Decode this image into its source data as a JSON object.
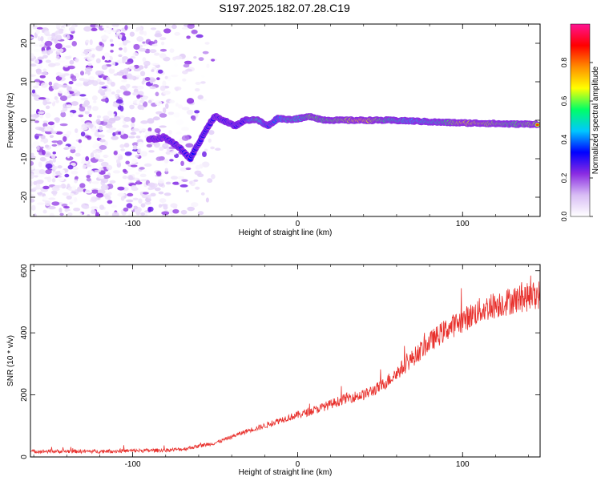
{
  "title": "S197.2025.182.07.28.C19",
  "chart_data": [
    {
      "type": "heatmap",
      "xlabel": "Height of straight line (km)",
      "ylabel": "Frequency (Hz)",
      "xlim": [
        -162,
        147
      ],
      "ylim": [
        -25,
        25
      ],
      "xticks": [
        -100,
        0,
        100
      ],
      "yticks": [
        -20,
        -10,
        0,
        10,
        20
      ],
      "colorbar": {
        "label": "Normalized spectral amplitude",
        "range": [
          0,
          1
        ],
        "ticks": [
          0.0,
          0.2,
          0.4,
          0.6,
          0.8
        ],
        "colors": [
          "#ffffff",
          "#d8bdf5",
          "#8a2be2",
          "#0000ff",
          "#00c8ff",
          "#00ff66",
          "#ffff00",
          "#ff8c00",
          "#ff0000",
          "#ff1493"
        ]
      },
      "ridge": [
        {
          "x": -90,
          "y": -5,
          "a": 0.25
        },
        {
          "x": -80,
          "y": -4.5,
          "a": 0.3
        },
        {
          "x": -72,
          "y": -7,
          "a": 0.3
        },
        {
          "x": -65,
          "y": -10,
          "a": 0.35
        },
        {
          "x": -60,
          "y": -6,
          "a": 0.3
        },
        {
          "x": -55,
          "y": -2,
          "a": 0.3
        },
        {
          "x": -50,
          "y": 1,
          "a": 0.3
        },
        {
          "x": -45,
          "y": 0,
          "a": 0.3
        },
        {
          "x": -38,
          "y": -1.5,
          "a": 0.3
        },
        {
          "x": -32,
          "y": 0,
          "a": 0.35
        },
        {
          "x": -25,
          "y": 0.2,
          "a": 0.7
        },
        {
          "x": -18,
          "y": -1.5,
          "a": 0.4
        },
        {
          "x": -12,
          "y": 0.5,
          "a": 0.45
        },
        {
          "x": -5,
          "y": 0.2,
          "a": 0.65
        },
        {
          "x": 2,
          "y": 0.5,
          "a": 0.6
        },
        {
          "x": 8,
          "y": 1,
          "a": 0.8
        },
        {
          "x": 15,
          "y": 0.1,
          "a": 0.75
        },
        {
          "x": 25,
          "y": 0,
          "a": 0.8
        },
        {
          "x": 40,
          "y": 0,
          "a": 0.95
        },
        {
          "x": 55,
          "y": 0,
          "a": 0.7
        },
        {
          "x": 70,
          "y": -0.2,
          "a": 0.55
        },
        {
          "x": 85,
          "y": -0.5,
          "a": 0.65
        },
        {
          "x": 100,
          "y": -0.7,
          "a": 0.9
        },
        {
          "x": 115,
          "y": -0.8,
          "a": 0.85
        },
        {
          "x": 130,
          "y": -1,
          "a": 0.75
        },
        {
          "x": 146,
          "y": -1,
          "a": 0.85
        }
      ]
    },
    {
      "type": "line",
      "xlabel": "Height of straight line (km)",
      "ylabel": "SNR (10 * v/v)",
      "xlim": [
        -162,
        147
      ],
      "ylim": [
        0,
        620
      ],
      "xticks": [
        -100,
        0,
        100
      ],
      "yticks": [
        0,
        200,
        400,
        600
      ],
      "line_color": "#e8302c",
      "series": [
        {
          "x": [
            -162,
            -140,
            -120,
            -100,
            -80,
            -70,
            -60,
            -50,
            -40,
            -30,
            -20,
            -10,
            0,
            10,
            20,
            30,
            40,
            50,
            60,
            70,
            80,
            90,
            100,
            110,
            120,
            130,
            140,
            147
          ],
          "values": [
            18,
            18,
            18,
            20,
            22,
            25,
            35,
            45,
            65,
            85,
            100,
            120,
            135,
            150,
            170,
            190,
            200,
            225,
            270,
            320,
            370,
            410,
            440,
            470,
            490,
            505,
            515,
            525
          ]
        }
      ]
    }
  ]
}
